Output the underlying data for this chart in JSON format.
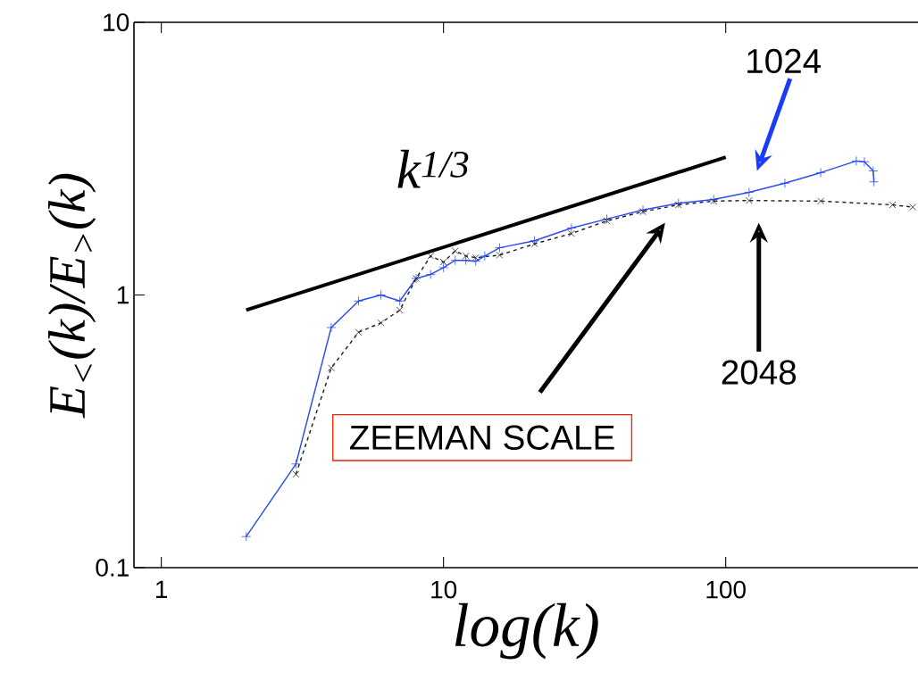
{
  "chart_data": {
    "type": "line",
    "xlabel": "log(k)",
    "ylabel": "E$_{<}$(k)/E$_{>}$(k)",
    "log": "xy",
    "xlim": [
      0.8,
      480
    ],
    "ylim": [
      0.1,
      10
    ],
    "xticks": [
      1,
      10,
      100
    ],
    "yticks": [
      0.1,
      1,
      10
    ],
    "grid": false,
    "series": [
      {
        "color": "#2b4cf0",
        "marker": "cross",
        "line_style": "solid",
        "x": [
          2,
          3,
          4,
          5,
          6,
          7,
          8,
          9,
          10,
          11,
          12,
          13,
          14,
          15.8,
          21,
          28.4,
          37.9,
          50.9,
          68,
          90.6,
          121,
          162,
          217,
          290,
          310,
          333,
          335
        ],
        "values": [
          0.13,
          0.24,
          0.76,
          0.95,
          1.0,
          0.95,
          1.15,
          1.19,
          1.26,
          1.34,
          1.34,
          1.33,
          1.39,
          1.49,
          1.58,
          1.76,
          1.9,
          2.05,
          2.17,
          2.24,
          2.38,
          2.57,
          2.81,
          3.1,
          3.08,
          2.85,
          2.6
        ]
      },
      {
        "color": "#222222",
        "marker": "cross",
        "line_style": "dashed",
        "x": [
          3,
          4,
          5,
          6,
          7,
          8,
          9,
          10,
          11,
          12,
          13,
          15.8,
          21,
          28.4,
          37.9,
          50.9,
          68,
          90.6,
          121,
          217,
          390,
          460
        ],
        "values": [
          0.22,
          0.54,
          0.73,
          0.79,
          0.88,
          1.15,
          1.39,
          1.32,
          1.45,
          1.39,
          1.37,
          1.4,
          1.54,
          1.68,
          1.87,
          2.02,
          2.14,
          2.21,
          2.22,
          2.21,
          2.14,
          2.1
        ]
      },
      {
        "name": "k$^{1/3}$",
        "color": "#000000",
        "marker": "none",
        "line_style": "solid",
        "x": [
          2,
          100
        ],
        "values": [
          0.88,
          3.2
        ]
      }
    ],
    "annotations": [
      "1024",
      "2048",
      "ZEEMAN SCALE"
    ]
  }
}
